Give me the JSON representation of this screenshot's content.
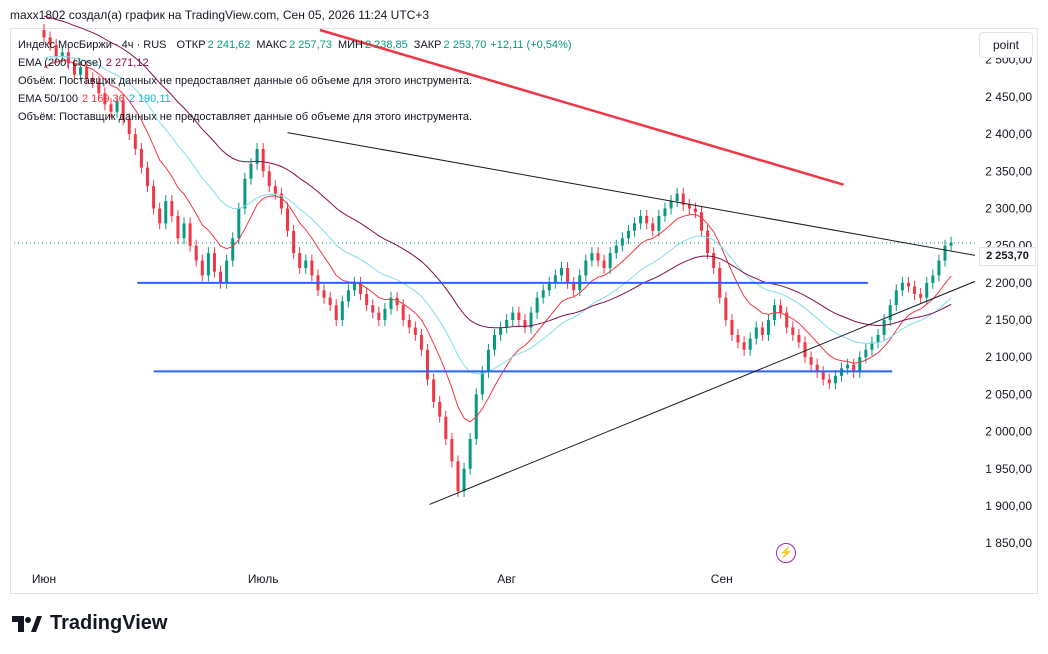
{
  "header": {
    "text": "maxx1802 создал(а) график на TradingView.com, Сен 05, 2026 11:24 UTC+3"
  },
  "legend": {
    "symbol": "Индекс МосБиржи · 4ч · RUS",
    "ohlc": [
      {
        "label": "ОТКР",
        "value": "2 241,62"
      },
      {
        "label": "МАКС",
        "value": "2 257,73"
      },
      {
        "label": "МИН",
        "value": "2 238,85"
      },
      {
        "label": "ЗАКР",
        "value": "2 253,70"
      }
    ],
    "change": "+12,11 (+0,54%)",
    "ema200_label": "EMA (200, close)",
    "ema200_value": "2 271,12",
    "volume_note_1": "Объём: Поставщик данных не предоставляет данные об объеме для этого инструмента.",
    "ema50100_label": "EMA 50/100",
    "ema50_value": "2 169,36",
    "ema100_value": "2 190,11",
    "volume_note_2": "Объём: Поставщик данных не предоставляет данные об объеме для этого инструмента."
  },
  "controls": {
    "scale_mode": "point"
  },
  "last_price_label": "2 253,70",
  "brand": {
    "name": "TradingView"
  },
  "colors": {
    "up": "#089981",
    "down": "#f23645",
    "ema50": "#f23645",
    "ema100": "#80deea",
    "ema200": "#880e4f",
    "hline": "#2962ff",
    "trend_red": "#f23645",
    "trend_black": "#131722"
  },
  "chart_data": {
    "type": "candlestick",
    "y_axis": {
      "ticks": [
        "2 500,00",
        "2 450,00",
        "2 400,00",
        "2 350,00",
        "2 300,00",
        "2 250,00",
        "2 200,00",
        "2 150,00",
        "2 100,00",
        "2 050,00",
        "2 000,00",
        "1 950,00",
        "1 900,00",
        "1 850,00"
      ],
      "tick_values": [
        2500,
        2450,
        2400,
        2350,
        2300,
        2250,
        2200,
        2150,
        2100,
        2050,
        2000,
        1950,
        1900,
        1850
      ],
      "range": [
        1830,
        2540
      ]
    },
    "x_axis": {
      "labels": [
        "Июн",
        "Июль",
        "Авг",
        "Сен"
      ],
      "label_index": [
        0,
        54,
        114,
        167
      ],
      "range": [
        0,
        222
      ]
    },
    "closes": [
      2530,
      2520,
      2505,
      2510,
      2495,
      2480,
      2490,
      2475,
      2470,
      2455,
      2440,
      2430,
      2445,
      2420,
      2400,
      2380,
      2355,
      2330,
      2300,
      2280,
      2310,
      2290,
      2260,
      2280,
      2250,
      2230,
      2210,
      2240,
      2215,
      2200,
      2230,
      2260,
      2300,
      2340,
      2360,
      2380,
      2350,
      2330,
      2320,
      2300,
      2270,
      2240,
      2220,
      2230,
      2210,
      2190,
      2180,
      2170,
      2150,
      2175,
      2190,
      2200,
      2185,
      2170,
      2160,
      2150,
      2165,
      2180,
      2170,
      2150,
      2140,
      2130,
      2110,
      2070,
      2040,
      2020,
      1990,
      1960,
      1920,
      1950,
      1990,
      2050,
      2080,
      2110,
      2130,
      2140,
      2150,
      2160,
      2150,
      2140,
      2160,
      2180,
      2190,
      2200,
      2210,
      2220,
      2200,
      2190,
      2210,
      2230,
      2240,
      2230,
      2220,
      2240,
      2250,
      2260,
      2270,
      2280,
      2290,
      2280,
      2270,
      2290,
      2300,
      2310,
      2320,
      2305,
      2300,
      2295,
      2270,
      2240,
      2220,
      2180,
      2150,
      2130,
      2120,
      2110,
      2125,
      2140,
      2130,
      2150,
      2170,
      2160,
      2140,
      2130,
      2120,
      2100,
      2090,
      2080,
      2070,
      2065,
      2075,
      2085,
      2090,
      2080,
      2100,
      2110,
      2120,
      2130,
      2150,
      2170,
      2190,
      2200,
      2195,
      2185,
      2180,
      2200,
      2210,
      2230,
      2250,
      2254
    ],
    "series": [
      {
        "name": "EMA (200, close)",
        "value": 2271.12
      },
      {
        "name": "EMA 50",
        "value": 2169.36
      },
      {
        "name": "EMA 100",
        "value": 2190.11
      }
    ],
    "levels": [
      2200,
      2081
    ],
    "last_close": 2253.7
  }
}
